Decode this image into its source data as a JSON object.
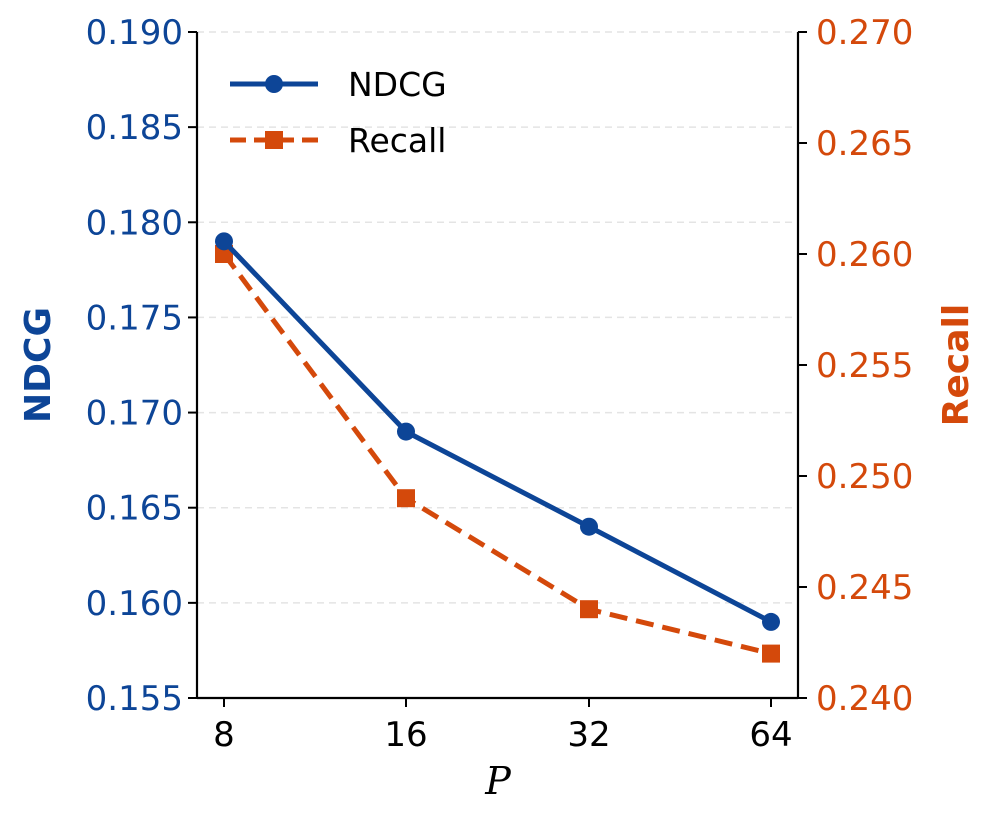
{
  "chart_data": {
    "type": "line",
    "title": "",
    "xlabel": "P",
    "categories": [
      "8",
      "16",
      "32",
      "64"
    ],
    "left_axis": {
      "label": "NDCG",
      "color": "#0d4597",
      "ylim": [
        0.155,
        0.19
      ],
      "ticks": [
        "0.155",
        "0.160",
        "0.165",
        "0.170",
        "0.175",
        "0.180",
        "0.185",
        "0.190"
      ]
    },
    "right_axis": {
      "label": "Recall",
      "color": "#d4490b",
      "ylim": [
        0.24,
        0.27
      ],
      "ticks": [
        "0.240",
        "0.245",
        "0.250",
        "0.255",
        "0.260",
        "0.265",
        "0.270"
      ]
    },
    "series": [
      {
        "name": "NDCG",
        "axis": "left",
        "values": [
          0.179,
          0.169,
          0.164,
          0.159
        ],
        "color": "#0d4597",
        "style": "solid",
        "marker": "circle"
      },
      {
        "name": "Recall",
        "axis": "right",
        "values": [
          0.26,
          0.249,
          0.244,
          0.242
        ],
        "color": "#d4490b",
        "style": "dashed",
        "marker": "square"
      }
    ],
    "grid": "horizontal dashed",
    "legend_position": "top-left"
  }
}
